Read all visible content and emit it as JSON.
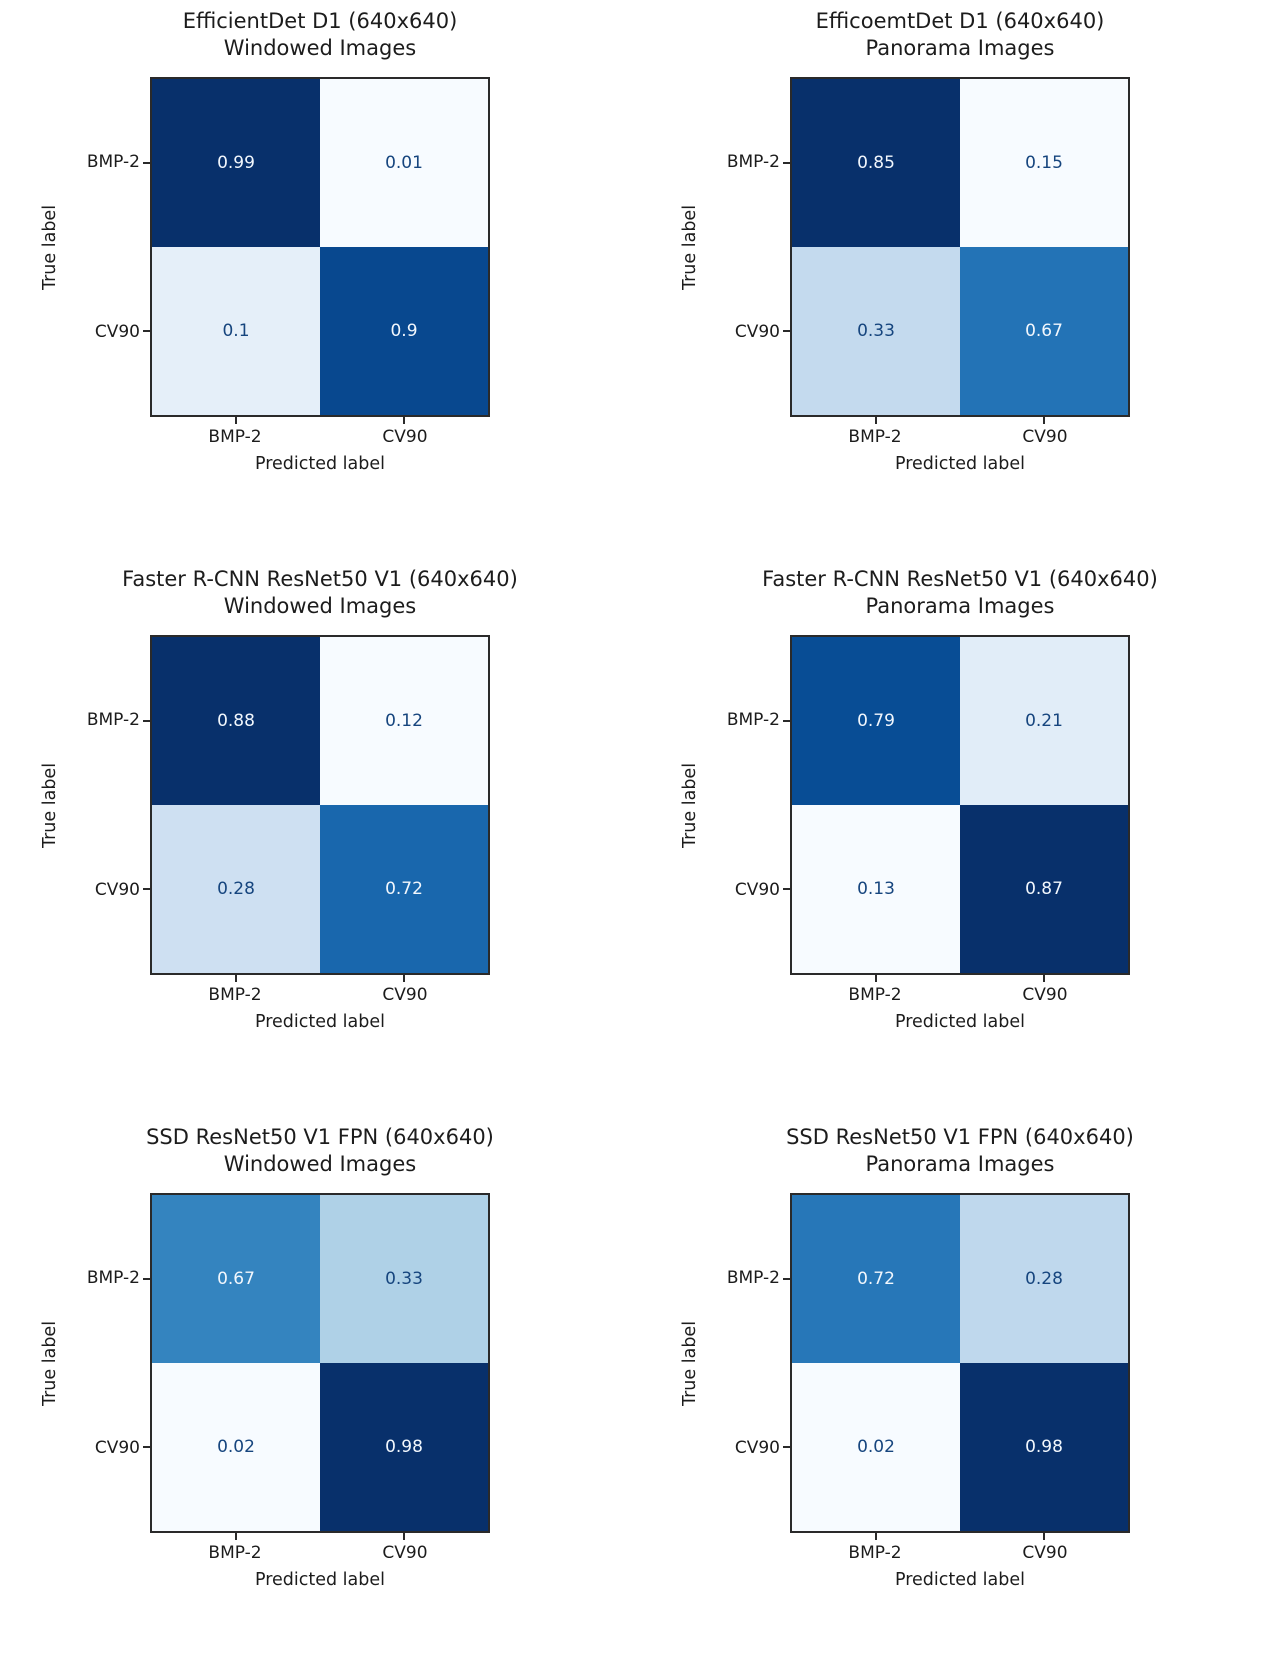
{
  "figure": {
    "ylabel": "True label",
    "xlabel": "Predicted label",
    "classes": [
      "BMP-2",
      "CV90"
    ]
  },
  "colors": {
    "cmap": "Blues",
    "cmap_stops": [
      [
        247,
        251,
        255
      ],
      [
        222,
        235,
        247
      ],
      [
        198,
        219,
        239
      ],
      [
        158,
        202,
        225
      ],
      [
        107,
        174,
        214
      ],
      [
        66,
        146,
        198
      ],
      [
        33,
        113,
        181
      ],
      [
        8,
        81,
        156
      ],
      [
        8,
        48,
        107
      ]
    ],
    "text_on_dark": "#f2f7fd",
    "text_on_light": "#16457e",
    "axis_color": "#2a2a2a",
    "text_color": "#1c1c1c",
    "background": "#ffffff"
  },
  "chart_data": [
    {
      "type": "heatmap",
      "title_line1": "EfficientDet D1 (640x640)",
      "title_line2": "Windowed Images",
      "rows": [
        "BMP-2",
        "CV90"
      ],
      "cols": [
        "BMP-2",
        "CV90"
      ],
      "matrix": [
        [
          0.99,
          0.01
        ],
        [
          0.1,
          0.9
        ]
      ],
      "labels": [
        [
          "0.99",
          "0.01"
        ],
        [
          "0.1",
          "0.9"
        ]
      ],
      "xlabel": "Predicted label",
      "ylabel": "True label",
      "normalization": "per-matrix min-max",
      "legend": "none"
    },
    {
      "type": "heatmap",
      "title_line1": "EfficoemtDet D1 (640x640)",
      "title_line2": "Panorama Images",
      "rows": [
        "BMP-2",
        "CV90"
      ],
      "cols": [
        "BMP-2",
        "CV90"
      ],
      "matrix": [
        [
          0.85,
          0.15
        ],
        [
          0.33,
          0.67
        ]
      ],
      "labels": [
        [
          "0.85",
          "0.15"
        ],
        [
          "0.33",
          "0.67"
        ]
      ],
      "xlabel": "Predicted label",
      "ylabel": "True label",
      "normalization": "per-matrix min-max",
      "legend": "none"
    },
    {
      "type": "heatmap",
      "title_line1": "Faster R-CNN ResNet50 V1 (640x640)",
      "title_line2": "Windowed Images",
      "rows": [
        "BMP-2",
        "CV90"
      ],
      "cols": [
        "BMP-2",
        "CV90"
      ],
      "matrix": [
        [
          0.88,
          0.12
        ],
        [
          0.28,
          0.72
        ]
      ],
      "labels": [
        [
          "0.88",
          "0.12"
        ],
        [
          "0.28",
          "0.72"
        ]
      ],
      "xlabel": "Predicted label",
      "ylabel": "True label",
      "normalization": "per-matrix min-max",
      "legend": "none"
    },
    {
      "type": "heatmap",
      "title_line1": "Faster R-CNN ResNet50 V1 (640x640)",
      "title_line2": "Panorama Images",
      "rows": [
        "BMP-2",
        "CV90"
      ],
      "cols": [
        "BMP-2",
        "CV90"
      ],
      "matrix": [
        [
          0.79,
          0.21
        ],
        [
          0.13,
          0.87
        ]
      ],
      "labels": [
        [
          "0.79",
          "0.21"
        ],
        [
          "0.13",
          "0.87"
        ]
      ],
      "xlabel": "Predicted label",
      "ylabel": "True label",
      "normalization": "per-matrix min-max",
      "legend": "none"
    },
    {
      "type": "heatmap",
      "title_line1": "SSD ResNet50 V1 FPN (640x640)",
      "title_line2": "Windowed Images",
      "rows": [
        "BMP-2",
        "CV90"
      ],
      "cols": [
        "BMP-2",
        "CV90"
      ],
      "matrix": [
        [
          0.67,
          0.33
        ],
        [
          0.02,
          0.98
        ]
      ],
      "labels": [
        [
          "0.67",
          "0.33"
        ],
        [
          "0.02",
          "0.98"
        ]
      ],
      "xlabel": "Predicted label",
      "ylabel": "True label",
      "normalization": "per-matrix min-max",
      "legend": "none"
    },
    {
      "type": "heatmap",
      "title_line1": "SSD ResNet50 V1 FPN (640x640)",
      "title_line2": "Panorama Images",
      "rows": [
        "BMP-2",
        "CV90"
      ],
      "cols": [
        "BMP-2",
        "CV90"
      ],
      "matrix": [
        [
          0.72,
          0.28
        ],
        [
          0.02,
          0.98
        ]
      ],
      "labels": [
        [
          "0.72",
          "0.28"
        ],
        [
          "0.02",
          "0.98"
        ]
      ],
      "xlabel": "Predicted label",
      "ylabel": "True label",
      "normalization": "per-matrix min-max",
      "legend": "none"
    }
  ]
}
